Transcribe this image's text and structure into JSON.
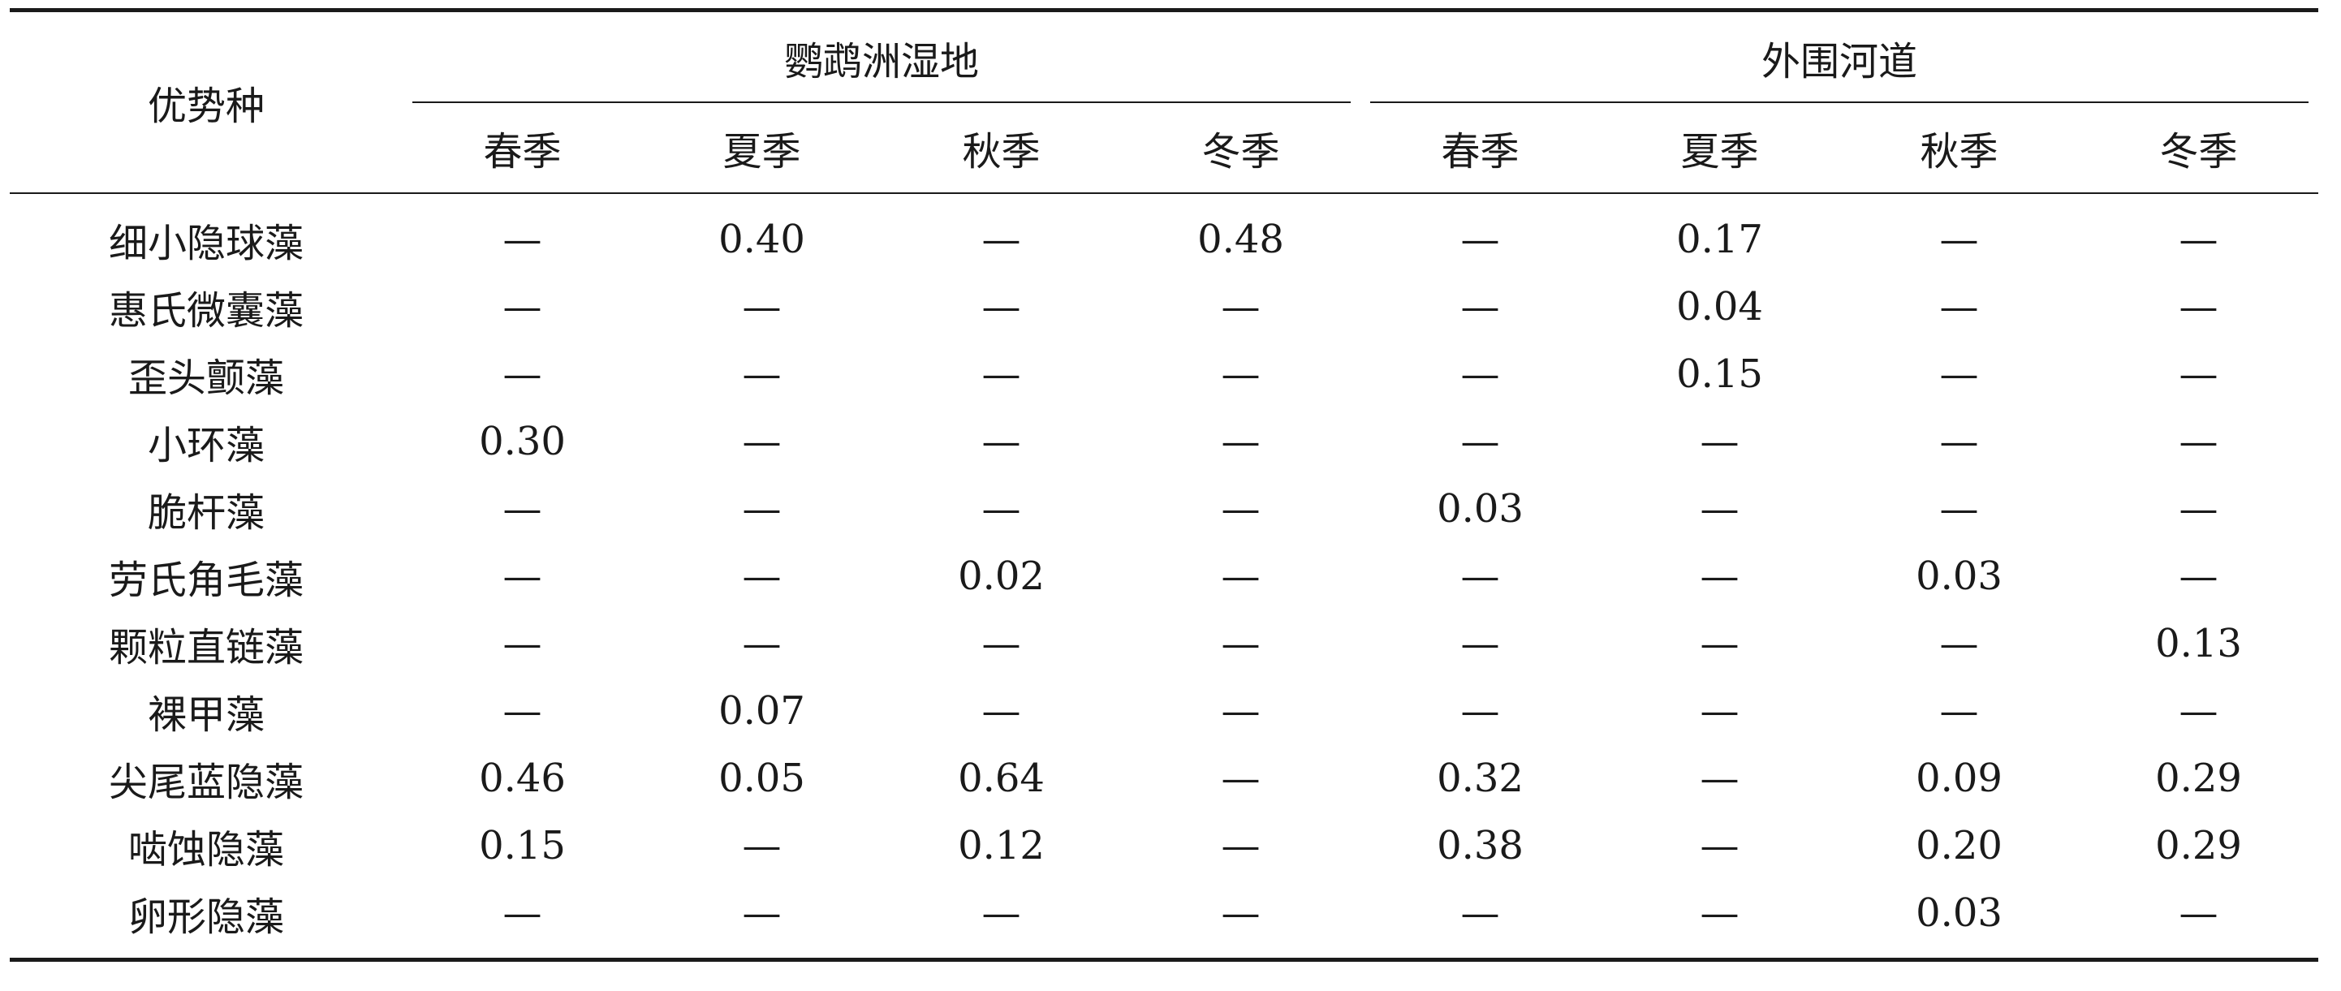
{
  "table": {
    "header_species": "优势种",
    "groups": [
      {
        "label": "鹦鹉洲湿地",
        "seasons": [
          "春季",
          "夏季",
          "秋季",
          "冬季"
        ]
      },
      {
        "label": "外围河道",
        "seasons": [
          "春季",
          "夏季",
          "秋季",
          "冬季"
        ]
      }
    ],
    "rows": [
      {
        "species": "细小隐球藻",
        "values": [
          "—",
          "0.40",
          "—",
          "0.48",
          "—",
          "0.17",
          "—",
          "—"
        ]
      },
      {
        "species": "惠氏微囊藻",
        "values": [
          "—",
          "—",
          "—",
          "—",
          "—",
          "0.04",
          "—",
          "—"
        ]
      },
      {
        "species": "歪头颤藻",
        "values": [
          "—",
          "—",
          "—",
          "—",
          "—",
          "0.15",
          "—",
          "—"
        ]
      },
      {
        "species": "小环藻",
        "values": [
          "0.30",
          "—",
          "—",
          "—",
          "—",
          "—",
          "—",
          "—"
        ]
      },
      {
        "species": "脆杆藻",
        "values": [
          "—",
          "—",
          "—",
          "—",
          "0.03",
          "—",
          "—",
          "—"
        ]
      },
      {
        "species": "劳氏角毛藻",
        "values": [
          "—",
          "—",
          "0.02",
          "—",
          "—",
          "—",
          "0.03",
          "—"
        ]
      },
      {
        "species": "颗粒直链藻",
        "values": [
          "—",
          "—",
          "—",
          "—",
          "—",
          "—",
          "—",
          "0.13"
        ]
      },
      {
        "species": "裸甲藻",
        "values": [
          "—",
          "0.07",
          "—",
          "—",
          "—",
          "—",
          "—",
          "—"
        ]
      },
      {
        "species": "尖尾蓝隐藻",
        "values": [
          "0.46",
          "0.05",
          "0.64",
          "—",
          "0.32",
          "—",
          "0.09",
          "0.29"
        ]
      },
      {
        "species": "啮蚀隐藻",
        "values": [
          "0.15",
          "—",
          "0.12",
          "—",
          "0.38",
          "—",
          "0.20",
          "0.29"
        ]
      },
      {
        "species": "卵形隐藻",
        "values": [
          "—",
          "—",
          "—",
          "—",
          "—",
          "—",
          "0.03",
          "—"
        ]
      }
    ]
  }
}
